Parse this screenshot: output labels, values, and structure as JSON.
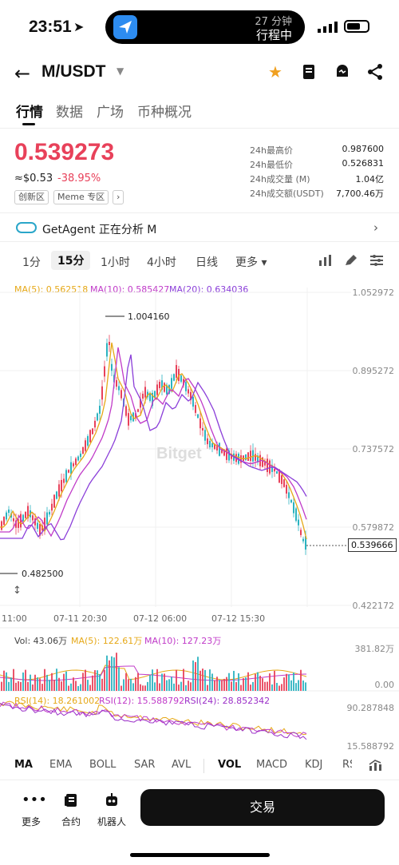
{
  "status": {
    "time": "23:51",
    "island_line1": "27 分钟",
    "island_line2": "行程中"
  },
  "header": {
    "title": "M/USDT"
  },
  "tabs": [
    "行情",
    "数据",
    "广场",
    "币种概况"
  ],
  "price": {
    "last": "0.539273",
    "usd": "≈$0.53",
    "change": "-38.95%",
    "tags": [
      "创新区",
      "Meme 专区",
      "›"
    ]
  },
  "stats": [
    {
      "label": "24h最高价",
      "value": "0.987600"
    },
    {
      "label": "24h最低价",
      "value": "0.526831"
    },
    {
      "label": "24h成交量 (M)",
      "value": "1.04亿"
    },
    {
      "label": "24h成交额(USDT)",
      "value": "7,700.46万"
    }
  ],
  "agent": {
    "text": "GetAgent 正在分析 M"
  },
  "timeframes": [
    "1分",
    "15分",
    "1小时",
    "4小时",
    "日线",
    "更多 ▾"
  ],
  "colors": {
    "up": "#2bb3c0",
    "down": "#e8415a",
    "ma5": "#e6a817",
    "ma10": "#c03ac8",
    "ma20": "#8b3fd9",
    "rsi24": "#9b30c8"
  },
  "main_chart": {
    "legend": {
      "ma5": "MA(5): 0.562518",
      "ma10": "MA(10): 0.585427",
      "ma20": "MA(20): 0.634036"
    },
    "axis": [
      "1.052972",
      "0.895272",
      "0.737572",
      "0.579872",
      "0.422172"
    ],
    "high_marker": "1.004160",
    "low_marker": "0.482500",
    "current": "0.539666",
    "x_labels": [
      "11:00",
      "07-11 20:30",
      "07-12 06:00",
      "07-12 15:30"
    ],
    "watermark": "Bitget"
  },
  "volume": {
    "legend": {
      "vol": "Vol: 43.06万",
      "ma5": "MA(5): 122.61万",
      "ma10": "MA(10): 127.23万"
    },
    "axis": [
      "381.82万",
      "0.00"
    ]
  },
  "rsi": {
    "legend": {
      "r14": "RSI(14): 18.261002",
      "r12": "RSI(12): 15.588792",
      "r24": "RSI(24): 28.852342"
    },
    "axis": [
      "90.287848",
      "15.588792"
    ]
  },
  "indicators": [
    "MA",
    "EMA",
    "BOLL",
    "SAR",
    "AVL",
    "VOL",
    "MACD",
    "KDJ",
    "RS"
  ],
  "bottom": {
    "more": "更多",
    "contract": "合约",
    "robot": "机器人",
    "trade": "交易"
  }
}
